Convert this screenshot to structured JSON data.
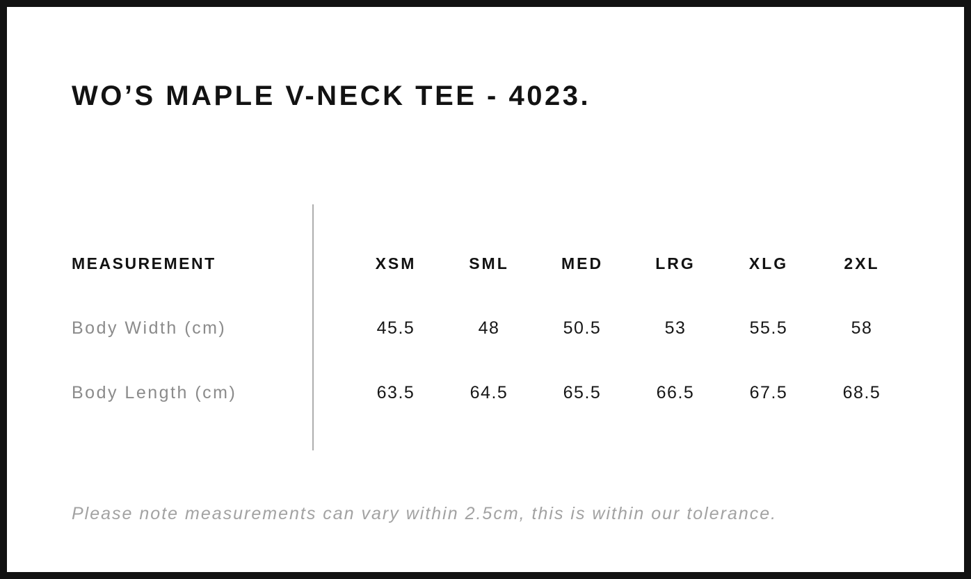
{
  "page": {
    "title": "WO’S MAPLE V-NECK TEE - 4023."
  },
  "table": {
    "measurement_header": "MEASUREMENT",
    "size_headers": [
      "XSM",
      "SML",
      "MED",
      "LRG",
      "XLG",
      "2XL"
    ],
    "rows": [
      {
        "label": "Body Width (cm)",
        "values": [
          "45.5",
          "48",
          "50.5",
          "53",
          "55.5",
          "58"
        ]
      },
      {
        "label": "Body Length (cm)",
        "values": [
          "63.5",
          "64.5",
          "65.5",
          "66.5",
          "67.5",
          "68.5"
        ]
      }
    ]
  },
  "note": "Please note measurements can vary within 2.5cm, this is within our tolerance.",
  "colors": {
    "frame_border": "#121212",
    "heading_text": "#121212",
    "value_text": "#161616",
    "row_label_gray": "#8b8b8b",
    "note_gray": "#a2a2a2",
    "divider_gray": "#aeaeae",
    "background": "#ffffff"
  },
  "chart_data": {
    "type": "table",
    "title": "WO’S MAPLE V-NECK TEE - 4023.",
    "columns": [
      "MEASUREMENT",
      "XSM",
      "SML",
      "MED",
      "LRG",
      "XLG",
      "2XL"
    ],
    "rows": [
      [
        "Body Width (cm)",
        45.5,
        48,
        50.5,
        53,
        55.5,
        58
      ],
      [
        "Body Length (cm)",
        63.5,
        64.5,
        65.5,
        66.5,
        67.5,
        68.5
      ]
    ],
    "footnote": "Please note measurements can vary within 2.5cm, this is within our tolerance."
  }
}
